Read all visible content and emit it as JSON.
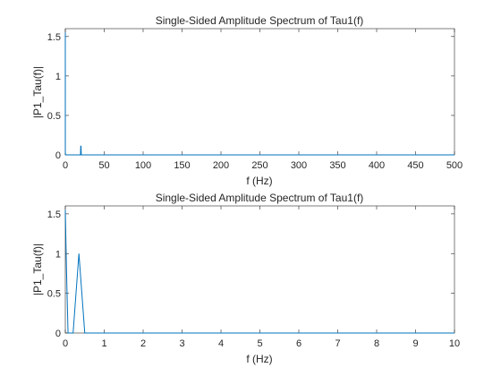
{
  "chart_data": [
    {
      "type": "line",
      "title": "Single-Sided Amplitude Spectrum of Tau1(f)",
      "xlabel": "f (Hz)",
      "ylabel": "|P1_Tau(f)|",
      "xlim": [
        0,
        500
      ],
      "ylim": [
        0,
        1.6
      ],
      "xticks": [
        0,
        50,
        100,
        150,
        200,
        250,
        300,
        350,
        400,
        450,
        500
      ],
      "yticks": [
        0,
        0.5,
        1,
        1.5
      ],
      "ytick_labels": [
        "0",
        "0.5",
        "1",
        "1.5"
      ],
      "grid": false,
      "series": [
        {
          "color": "#0072BD",
          "x": [
            0,
            0.05,
            0.5,
            19.5,
            19.8,
            20.2,
            20.5,
            500
          ],
          "y": [
            1.55,
            0.02,
            0,
            0,
            0.11,
            0.11,
            0,
            0
          ]
        }
      ]
    },
    {
      "type": "line",
      "title": "Single-Sided Amplitude Spectrum of Tau1(f)",
      "xlabel": "f (Hz)",
      "ylabel": "|P1_Tau(f)|",
      "xlim": [
        0,
        10
      ],
      "ylim": [
        0,
        1.6
      ],
      "xticks": [
        0,
        1,
        2,
        3,
        4,
        5,
        6,
        7,
        8,
        9,
        10
      ],
      "yticks": [
        0,
        0.5,
        1,
        1.5
      ],
      "ytick_labels": [
        "0",
        "0.5",
        "1",
        "1.5"
      ],
      "grid": false,
      "series": [
        {
          "color": "#0072BD",
          "x": [
            0,
            0.03,
            0.07,
            0.2,
            0.35,
            0.5,
            0.6,
            10
          ],
          "y": [
            1.55,
            0.8,
            0,
            0,
            1.0,
            0,
            0,
            0
          ]
        }
      ]
    }
  ]
}
